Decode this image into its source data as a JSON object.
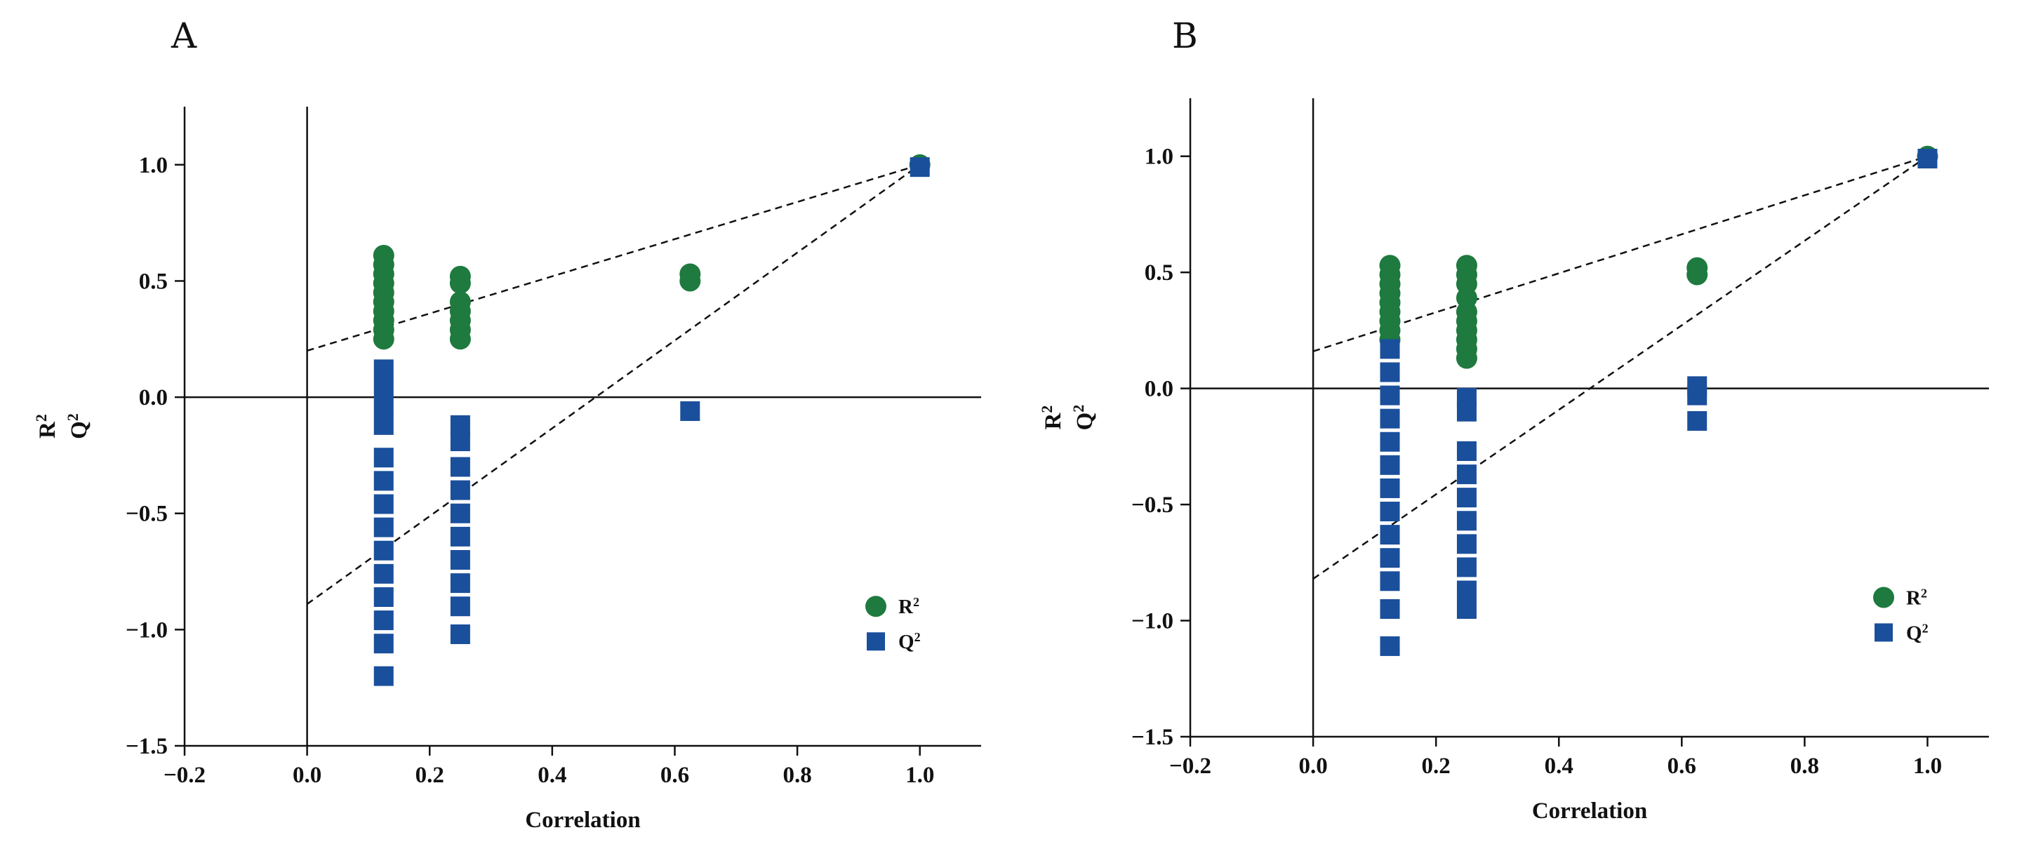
{
  "colors": {
    "r2": "#1e7a3e",
    "q2": "#1a4f9c",
    "axis": "#111111"
  },
  "chart_data": [
    {
      "type": "scatter",
      "panel": "A",
      "xlabel": "Correlation",
      "ylabel": [
        "R",
        "2",
        "Q",
        "2"
      ],
      "xlim": [
        -0.2,
        1.1
      ],
      "ylim": [
        -1.5,
        1.25
      ],
      "xticks": [
        -0.2,
        0.0,
        0.2,
        0.4,
        0.6,
        0.8,
        1.0
      ],
      "xtick_labels": [
        "−0.2",
        "0.0",
        "0.2",
        "0.4",
        "0.6",
        "0.8",
        "1.0"
      ],
      "yticks": [
        -1.5,
        -1.0,
        -0.5,
        0.0,
        0.5,
        1.0
      ],
      "ytick_labels": [
        "−1.5",
        "−1.0",
        "−0.5",
        "0.0",
        "0.5",
        "1.0"
      ],
      "legend": {
        "position": "lower-right",
        "entries": [
          [
            "R",
            "2"
          ],
          [
            "Q",
            "2"
          ]
        ]
      },
      "series": [
        {
          "name": "R2",
          "marker": "circle",
          "points": [
            [
              0.125,
              0.61
            ],
            [
              0.125,
              0.57
            ],
            [
              0.125,
              0.53
            ],
            [
              0.125,
              0.49
            ],
            [
              0.125,
              0.45
            ],
            [
              0.125,
              0.41
            ],
            [
              0.125,
              0.37
            ],
            [
              0.125,
              0.33
            ],
            [
              0.125,
              0.29
            ],
            [
              0.125,
              0.25
            ],
            [
              0.25,
              0.52
            ],
            [
              0.25,
              0.49
            ],
            [
              0.25,
              0.41
            ],
            [
              0.25,
              0.37
            ],
            [
              0.25,
              0.33
            ],
            [
              0.25,
              0.29
            ],
            [
              0.25,
              0.25
            ],
            [
              0.625,
              0.53
            ],
            [
              0.625,
              0.5
            ],
            [
              1.0,
              1.0
            ]
          ]
        },
        {
          "name": "Q2",
          "marker": "square",
          "points": [
            [
              0.125,
              0.12
            ],
            [
              0.125,
              0.04
            ],
            [
              0.125,
              -0.04
            ],
            [
              0.125,
              -0.12
            ],
            [
              0.125,
              -0.26
            ],
            [
              0.125,
              -0.36
            ],
            [
              0.125,
              -0.46
            ],
            [
              0.125,
              -0.56
            ],
            [
              0.125,
              -0.66
            ],
            [
              0.125,
              -0.76
            ],
            [
              0.125,
              -0.86
            ],
            [
              0.125,
              -0.96
            ],
            [
              0.125,
              -1.06
            ],
            [
              0.125,
              -1.2
            ],
            [
              0.25,
              -0.12
            ],
            [
              0.25,
              -0.19
            ],
            [
              0.25,
              -0.3
            ],
            [
              0.25,
              -0.4
            ],
            [
              0.25,
              -0.5
            ],
            [
              0.25,
              -0.6
            ],
            [
              0.25,
              -0.7
            ],
            [
              0.25,
              -0.8
            ],
            [
              0.25,
              -0.9
            ],
            [
              0.25,
              -1.02
            ],
            [
              0.625,
              -0.06
            ],
            [
              1.0,
              0.99
            ]
          ]
        }
      ],
      "fit_lines": [
        {
          "name": "R2 intercept line",
          "points": [
            [
              0.0,
              0.2
            ],
            [
              1.0,
              1.0
            ]
          ]
        },
        {
          "name": "Q2 intercept line",
          "points": [
            [
              0.0,
              -0.89
            ],
            [
              1.0,
              1.0
            ]
          ]
        }
      ]
    },
    {
      "type": "scatter",
      "panel": "B",
      "xlabel": "Correlation",
      "ylabel": [
        "R",
        "2",
        "Q",
        "2"
      ],
      "xlim": [
        -0.2,
        1.1
      ],
      "ylim": [
        -1.5,
        1.25
      ],
      "xticks": [
        -0.2,
        0.0,
        0.2,
        0.4,
        0.6,
        0.8,
        1.0
      ],
      "xtick_labels": [
        "−0.2",
        "0.0",
        "0.2",
        "0.4",
        "0.6",
        "0.8",
        "1.0"
      ],
      "yticks": [
        -1.5,
        -1.0,
        -0.5,
        0.0,
        0.5,
        1.0
      ],
      "ytick_labels": [
        "−1.5",
        "−1.0",
        "−0.5",
        "0.0",
        "0.5",
        "1.0"
      ],
      "legend": {
        "position": "lower-right",
        "entries": [
          [
            "R",
            "2"
          ],
          [
            "Q",
            "2"
          ]
        ]
      },
      "series": [
        {
          "name": "R2",
          "marker": "circle",
          "points": [
            [
              0.125,
              0.53
            ],
            [
              0.125,
              0.49
            ],
            [
              0.125,
              0.45
            ],
            [
              0.125,
              0.41
            ],
            [
              0.125,
              0.37
            ],
            [
              0.125,
              0.33
            ],
            [
              0.125,
              0.29
            ],
            [
              0.125,
              0.25
            ],
            [
              0.125,
              0.21
            ],
            [
              0.25,
              0.53
            ],
            [
              0.25,
              0.49
            ],
            [
              0.25,
              0.45
            ],
            [
              0.25,
              0.39
            ],
            [
              0.25,
              0.33
            ],
            [
              0.25,
              0.29
            ],
            [
              0.25,
              0.25
            ],
            [
              0.25,
              0.21
            ],
            [
              0.25,
              0.17
            ],
            [
              0.25,
              0.13
            ],
            [
              0.625,
              0.52
            ],
            [
              0.625,
              0.49
            ],
            [
              1.0,
              1.0
            ]
          ]
        },
        {
          "name": "Q2",
          "marker": "square",
          "points": [
            [
              0.125,
              0.17
            ],
            [
              0.125,
              0.07
            ],
            [
              0.125,
              -0.03
            ],
            [
              0.125,
              -0.13
            ],
            [
              0.125,
              -0.23
            ],
            [
              0.125,
              -0.33
            ],
            [
              0.125,
              -0.43
            ],
            [
              0.125,
              -0.53
            ],
            [
              0.125,
              -0.63
            ],
            [
              0.125,
              -0.73
            ],
            [
              0.125,
              -0.83
            ],
            [
              0.125,
              -0.95
            ],
            [
              0.125,
              -1.11
            ],
            [
              0.25,
              -0.04
            ],
            [
              0.25,
              -0.1
            ],
            [
              0.25,
              -0.27
            ],
            [
              0.25,
              -0.37
            ],
            [
              0.25,
              -0.47
            ],
            [
              0.25,
              -0.57
            ],
            [
              0.25,
              -0.67
            ],
            [
              0.25,
              -0.77
            ],
            [
              0.25,
              -0.87
            ],
            [
              0.25,
              -0.95
            ],
            [
              0.625,
              0.01
            ],
            [
              0.625,
              -0.03
            ],
            [
              0.625,
              -0.14
            ],
            [
              1.0,
              0.99
            ]
          ]
        }
      ],
      "fit_lines": [
        {
          "name": "R2 intercept line",
          "points": [
            [
              0.0,
              0.16
            ],
            [
              1.0,
              1.0
            ]
          ]
        },
        {
          "name": "Q2 intercept line",
          "points": [
            [
              0.0,
              -0.82
            ],
            [
              1.0,
              1.0
            ]
          ]
        }
      ]
    }
  ]
}
